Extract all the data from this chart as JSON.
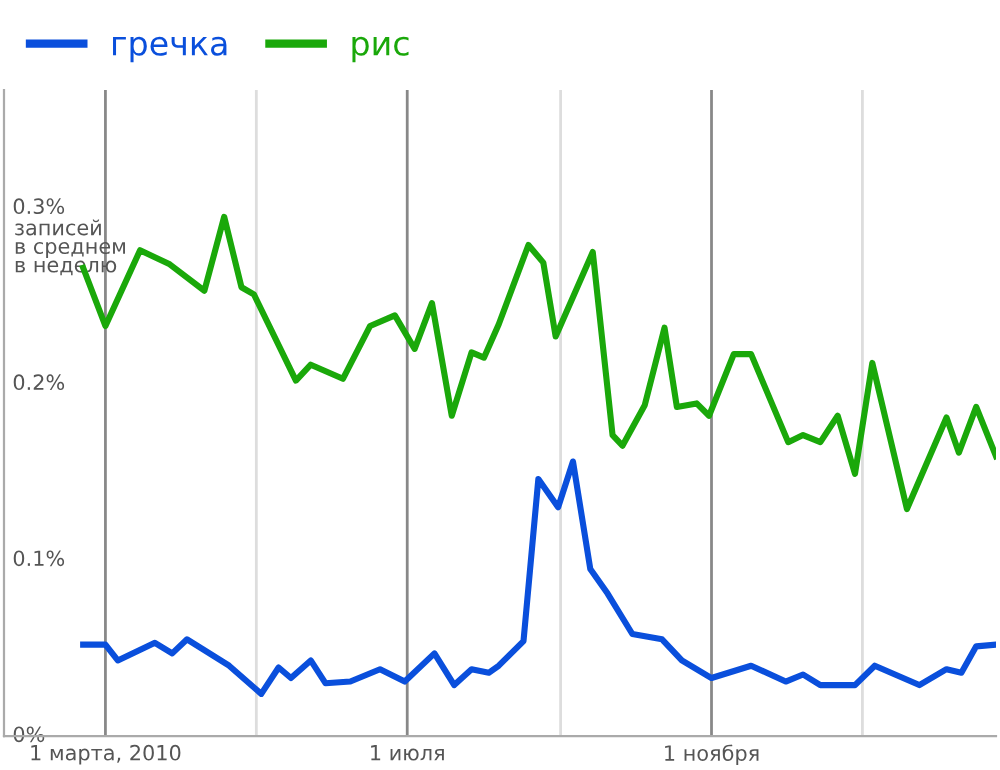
{
  "chart_data": {
    "type": "line",
    "ylabel": "записей\nв среднем\nв неделю",
    "series": [
      {
        "name": "гречка",
        "color": "#0a4fdc",
        "x": [
          "2010-02-20",
          "2010-03-01",
          "2010-03-06",
          "2010-03-21",
          "2010-03-28",
          "2010-04-03",
          "2010-04-20",
          "2010-05-03",
          "2010-05-10",
          "2010-05-15",
          "2010-05-23",
          "2010-05-29",
          "2010-06-08",
          "2010-06-20",
          "2010-06-30",
          "2010-07-12",
          "2010-07-20",
          "2010-07-27",
          "2010-08-03",
          "2010-08-07",
          "2010-08-17",
          "2010-08-23",
          "2010-08-31",
          "2010-09-06",
          "2010-09-13",
          "2010-09-20",
          "2010-09-30",
          "2010-10-12",
          "2010-10-20",
          "2010-11-01",
          "2010-11-17",
          "2010-12-01",
          "2010-12-08",
          "2010-12-15",
          "2010-12-29",
          "2011-01-06",
          "2011-01-24",
          "2011-02-04",
          "2011-02-10",
          "2011-02-16",
          "2011-02-24"
        ],
        "values": [
          0.052,
          0.052,
          0.043,
          0.053,
          0.047,
          0.055,
          0.04,
          0.024,
          0.039,
          0.033,
          0.043,
          0.03,
          0.031,
          0.038,
          0.031,
          0.047,
          0.029,
          0.038,
          0.036,
          0.04,
          0.054,
          0.146,
          0.13,
          0.156,
          0.095,
          0.081,
          0.058,
          0.055,
          0.043,
          0.033,
          0.04,
          0.031,
          0.035,
          0.029,
          0.029,
          0.04,
          0.029,
          0.038,
          0.036,
          0.051,
          0.052
        ]
      },
      {
        "name": "рис",
        "color": "#1aa80a",
        "x": [
          "2010-02-20",
          "2010-03-01",
          "2010-03-15",
          "2010-03-27",
          "2010-04-10",
          "2010-04-18",
          "2010-04-25",
          "2010-04-30",
          "2010-05-17",
          "2010-05-23",
          "2010-06-05",
          "2010-06-16",
          "2010-06-26",
          "2010-07-04",
          "2010-07-11",
          "2010-07-19",
          "2010-07-27",
          "2010-08-01",
          "2010-08-07",
          "2010-08-19",
          "2010-08-25",
          "2010-08-30",
          "2010-09-14",
          "2010-09-22",
          "2010-09-26",
          "2010-10-05",
          "2010-10-13",
          "2010-10-18",
          "2010-10-26",
          "2010-10-31",
          "2010-11-10",
          "2010-11-17",
          "2010-12-02",
          "2010-12-08",
          "2010-12-15",
          "2010-12-22",
          "2010-12-29",
          "2011-01-05",
          "2011-01-19",
          "2011-02-04",
          "2011-02-09",
          "2011-02-16",
          "2011-02-24"
        ],
        "values": [
          0.266,
          0.233,
          0.276,
          0.268,
          0.253,
          0.295,
          0.255,
          0.251,
          0.202,
          0.211,
          0.203,
          0.233,
          0.239,
          0.22,
          0.246,
          0.182,
          0.218,
          0.215,
          0.234,
          0.279,
          0.269,
          0.227,
          0.275,
          0.171,
          0.165,
          0.188,
          0.232,
          0.187,
          0.189,
          0.182,
          0.217,
          0.217,
          0.167,
          0.171,
          0.167,
          0.182,
          0.149,
          0.212,
          0.129,
          0.181,
          0.161,
          0.187,
          0.159
        ]
      }
    ],
    "xlim": [
      "2010-01-19",
      "2011-02-24"
    ],
    "xticks": [
      {
        "value": "2010-03-01",
        "label": "1 марта, 2010"
      },
      {
        "value": "2010-05-01",
        "label": null
      },
      {
        "value": "2010-07-01",
        "label": "1 июля"
      },
      {
        "value": "2010-09-01",
        "label": null
      },
      {
        "value": "2010-11-01",
        "label": "1 ноября"
      },
      {
        "value": "2011-01-01",
        "label": null
      }
    ],
    "ylim": [
      0,
      0.367
    ],
    "yticks": [
      {
        "value": 0,
        "label": "0%"
      },
      {
        "value": 0.1,
        "label": "0.1%"
      },
      {
        "value": 0.2,
        "label": "0.2%"
      },
      {
        "value": 0.3,
        "label": "0.3%"
      }
    ],
    "grid": "x",
    "legend": "top left",
    "marker": "none",
    "line_style": "solid"
  }
}
